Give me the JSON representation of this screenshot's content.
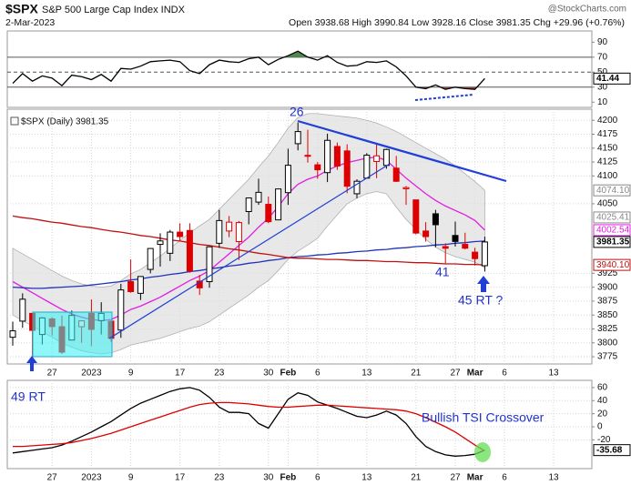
{
  "chart_data": [
    {
      "type": "line",
      "series": [
        {
          "color": "#000000",
          "values": [
            35,
            48,
            38,
            45,
            42,
            32,
            46,
            44,
            40,
            47,
            38,
            55,
            54,
            58,
            64,
            65,
            66,
            64,
            52,
            48,
            60,
            66,
            64,
            63,
            68,
            70,
            60,
            67,
            72,
            78,
            70,
            66,
            72,
            63,
            58,
            59,
            64,
            63,
            65,
            57,
            45,
            30,
            28,
            33,
            27,
            30,
            28,
            27,
            41.44,
            null,
            null,
            null,
            null,
            null,
            null,
            null,
            null,
            null,
            null
          ]
        }
      ],
      "ylim": [
        3,
        105
      ],
      "yticks": [
        10,
        30,
        50,
        70,
        90
      ],
      "levels": [
        70,
        50,
        30
      ],
      "overbought_color": "#4e8a4e",
      "oversold_color": "#9a4444",
      "last_labels": [
        {
          "value": 41.44,
          "color": "#000000"
        }
      ]
    },
    {
      "type": "candlestick",
      "title": "$SPX",
      "subtitle": "S&P 500 Large Cap Index INDX",
      "source": "@StockCharts.com",
      "date": "2-Mar-2023",
      "quote": "Open 3938.68 High 3990.84 Low 3928.16 Close 3981.35 Chg +29.96 (+0.76%)",
      "legend": "$SPX (Daily) 3981.35",
      "categories": [
        null,
        null,
        null,
        null,
        "27",
        null,
        null,
        null,
        "2023",
        null,
        null,
        null,
        "9",
        null,
        null,
        null,
        null,
        "17",
        null,
        null,
        null,
        "23",
        null,
        null,
        null,
        null,
        "30",
        null,
        "Feb",
        null,
        null,
        "6",
        null,
        null,
        null,
        null,
        "13",
        null,
        null,
        null,
        null,
        "21",
        null,
        null,
        null,
        "27",
        null,
        "Mar",
        null,
        null,
        "6",
        null,
        null,
        null,
        null,
        "13",
        null,
        null,
        null
      ],
      "open": [
        3810,
        3839,
        3853,
        3815,
        3843,
        3829,
        3805,
        3829,
        3853,
        3840,
        3839,
        3823,
        3910,
        3889,
        3932,
        3977,
        3961,
        3999,
        4002,
        3911,
        3910,
        3979,
        4001,
        3982,
        4036,
        4053,
        4049,
        4021,
        4070,
        4158,
        4137,
        4120,
        4106,
        4153,
        4145,
        4068,
        4096,
        4126,
        4119,
        4114,
        4077,
        4057,
        4001,
        4032,
        3973,
        3993,
        3977,
        3963,
        3938.68,
        null,
        null,
        null,
        null,
        null,
        null,
        null,
        null,
        null,
        null
      ],
      "high": [
        3838,
        3889,
        3853,
        3846,
        3846,
        3849,
        3858,
        3839.85,
        3878,
        3873,
        3839,
        3906,
        3950,
        3919,
        3970,
        3997,
        4003,
        4015,
        4015,
        3922,
        3973,
        4039,
        4028,
        4019,
        4061,
        4095,
        4063,
        4077,
        4149,
        4196,
        4183,
        4125,
        4176,
        4160,
        4157,
        4094,
        4141,
        4159,
        4149,
        4136,
        4082,
        4057,
        4017,
        4039,
        3979,
        4018,
        3998,
        3971,
        3990.84,
        null,
        null,
        null,
        null,
        null,
        null,
        null,
        null,
        null,
        null
      ],
      "low": [
        3795,
        3827,
        3765,
        3797,
        3813,
        3780,
        3805,
        3800,
        3794,
        3815,
        3802,
        3809,
        3890,
        3877,
        3925,
        3937,
        3947,
        3984,
        3926,
        3886,
        3899,
        3971,
        3990,
        3949,
        4013,
        4048,
        4015,
        4021,
        4048,
        4146,
        4124,
        4095,
        4089,
        4111,
        4069,
        4060,
        4096,
        4096,
        4113,
        4089,
        4048,
        3995,
        3982,
        3972,
        3943,
        3973,
        3968,
        3939,
        3928.16,
        null,
        null,
        null,
        null,
        null,
        null,
        null,
        null,
        null,
        null
      ],
      "close": [
        3821.62,
        3878.44,
        3822.39,
        3844.82,
        3829.25,
        3783.22,
        3849.28,
        3839.5,
        3824.14,
        3852.97,
        3808.1,
        3895.08,
        3892.09,
        3919.25,
        3969.61,
        3983.17,
        3999.09,
        3990.97,
        3928.86,
        3898.85,
        3972.61,
        4019.81,
        4016.95,
        4016.22,
        4060.43,
        4070.56,
        4017.77,
        4076.6,
        4119.21,
        4179.76,
        4136.48,
        4111.08,
        4164,
        4117.86,
        4081.5,
        4090.46,
        4137.29,
        4136.13,
        4147.6,
        4090.41,
        4079.09,
        3997.34,
        3991.05,
        4012.32,
        3970.04,
        3982.24,
        3970.15,
        3951.39,
        3981.35,
        null,
        null,
        null,
        null,
        null,
        null,
        null,
        null,
        null,
        null
      ],
      "up_color": "#000000",
      "down_color": "#dd0000",
      "band": {
        "color": "#dedede",
        "upper": [
          3970,
          3960,
          3950,
          3940,
          3930,
          3920,
          3912,
          3906,
          3902,
          3900,
          3902,
          3912,
          3924,
          3932,
          3944,
          3956,
          3970,
          3984,
          3998,
          4010,
          4022,
          4040,
          4058,
          4076,
          4094,
          4116,
          4136,
          4160,
          4186,
          4205,
          4212,
          4212,
          4210,
          4208,
          4206,
          4204,
          4200,
          4195,
          4188,
          4180,
          4170,
          4160,
          4150,
          4140,
          4130,
          4118,
          4104,
          4090,
          4074.1,
          null,
          null,
          null,
          null,
          null,
          null,
          null,
          null,
          null,
          null
        ],
        "lower": [
          3850,
          3840,
          3830,
          3820,
          3810,
          3800,
          3792,
          3786,
          3782,
          3780,
          3782,
          3788,
          3796,
          3800,
          3804,
          3808,
          3814,
          3820,
          3826,
          3830,
          3838,
          3850,
          3862,
          3874,
          3886,
          3900,
          3912,
          3930,
          3950,
          3965,
          3976,
          3988,
          4010,
          4030,
          4050,
          4060,
          4068,
          4072,
          4068,
          4044,
          4022,
          4004,
          3986,
          3972,
          3962,
          3955,
          3950,
          3945,
          3935,
          null,
          null,
          null,
          null,
          null,
          null,
          null,
          null,
          null,
          null
        ]
      },
      "series": [
        {
          "color": "#e020e0",
          "values": [
            3910,
            3900,
            3890,
            3880,
            3870,
            3860,
            3852,
            3846,
            3842,
            3840,
            3842,
            3850,
            3860,
            3866,
            3874,
            3882,
            3892,
            3902,
            3912,
            3920,
            3930,
            3945,
            3960,
            3975,
            3990,
            4008,
            4024,
            4045,
            4068,
            4085,
            4094,
            4100,
            4110,
            4118,
            4124,
            4128,
            4132,
            4134,
            4128,
            4112,
            4096,
            4082,
            4068,
            4056,
            4046,
            4038,
            4030,
            4020,
            4002.54,
            null,
            null,
            null,
            null,
            null,
            null,
            null,
            null,
            null,
            null
          ]
        },
        {
          "color": "#2233bb",
          "values": [
            3900,
            3899,
            3898,
            3898,
            3899,
            3900,
            3901,
            3902,
            3904,
            3906,
            3908,
            3910,
            3913,
            3915,
            3918,
            3920,
            3923,
            3925,
            3928,
            3930,
            3933,
            3935,
            3938,
            3940,
            3943,
            3945,
            3948,
            3950,
            3953,
            3955,
            3956,
            3958,
            3959,
            3961,
            3962,
            3964,
            3965,
            3967,
            3968,
            3970,
            3971,
            3973,
            3974,
            3976,
            3977,
            3979,
            3980,
            3982,
            3983,
            null,
            null,
            null,
            null,
            null,
            null,
            null,
            null,
            null,
            null
          ]
        },
        {
          "color": "#c01010",
          "values": [
            4028,
            4025,
            4023,
            4020,
            4017,
            4015,
            4012,
            4009,
            4007,
            4004,
            4001,
            3999,
            3996,
            3993,
            3991,
            3988,
            3985,
            3983,
            3980,
            3977,
            3975,
            3972,
            3969,
            3967,
            3964,
            3961,
            3959,
            3956,
            3953,
            3952,
            3952,
            3951,
            3950,
            3950,
            3949,
            3948,
            3948,
            3947,
            3946,
            3946,
            3945,
            3944,
            3944,
            3943,
            3942,
            3942,
            3941,
            3941,
            3940.1,
            null,
            null,
            null,
            null,
            null,
            null,
            null,
            null,
            null,
            null
          ]
        }
      ],
      "ylim": [
        3762,
        4220
      ],
      "yticks": [
        3775,
        3800,
        3825,
        3850,
        3875,
        3900,
        3925,
        4050,
        4100,
        4125,
        4150,
        4175,
        4200
      ],
      "grid": true,
      "last_labels": [
        {
          "value": 4074.1,
          "label": "4074.10",
          "color": "#888888"
        },
        {
          "value": 4025.41,
          "color": "#888888"
        },
        {
          "value": 4002.54,
          "color": "#e020e0"
        },
        {
          "value": 3981.35,
          "color": "#000000"
        },
        {
          "value": 3940.1,
          "label": "3940.10",
          "color": "#c01010"
        }
      ],
      "annotations": [
        {
          "text": "26",
          "color": "#2233cc"
        },
        {
          "text": "41",
          "color": "#2233cc"
        },
        {
          "text": "45 RT ?",
          "color": "#2233cc"
        }
      ]
    },
    {
      "type": "line",
      "categories": [
        null,
        null,
        null,
        null,
        "27",
        null,
        null,
        null,
        "2023",
        null,
        null,
        null,
        "9",
        null,
        null,
        null,
        null,
        "17",
        null,
        null,
        null,
        "23",
        null,
        null,
        null,
        null,
        "30",
        null,
        "Feb",
        null,
        null,
        "6",
        null,
        null,
        null,
        null,
        "13",
        null,
        null,
        null,
        null,
        "21",
        null,
        null,
        null,
        "27",
        null,
        "Mar",
        null,
        null,
        "6",
        null,
        null,
        null,
        null,
        "13",
        null,
        null,
        null
      ],
      "series": [
        {
          "color": "#000000",
          "values": [
            -40,
            -38,
            -36,
            -34,
            -32,
            -28,
            -22,
            -15,
            -8,
            0,
            8,
            18,
            28,
            36,
            42,
            48,
            54,
            58,
            60,
            56,
            45,
            30,
            22,
            22,
            20,
            5,
            -2,
            20,
            42,
            52,
            48,
            38,
            33,
            28,
            22,
            16,
            14,
            18,
            24,
            18,
            5,
            -15,
            -30,
            -38,
            -43,
            -45,
            -44,
            -42,
            -35.68,
            null,
            null,
            null,
            null,
            null,
            null,
            null,
            null,
            null,
            null
          ]
        },
        {
          "color": "#dd0000",
          "values": [
            -30,
            -30,
            -29,
            -28,
            -27,
            -26,
            -24,
            -21,
            -18,
            -14,
            -10,
            -5,
            0,
            5,
            10,
            15,
            20,
            25,
            30,
            34,
            36,
            37,
            37,
            36,
            35,
            33,
            31,
            30,
            30,
            31,
            32,
            33,
            33,
            32,
            31,
            30,
            29,
            28,
            27,
            26,
            24,
            20,
            14,
            7,
            0,
            -8,
            -18,
            -28,
            -37,
            null,
            null,
            null,
            null,
            null,
            null,
            null,
            null,
            null,
            null
          ]
        }
      ],
      "ylim": [
        -64,
        71
      ],
      "yticks": [
        -20,
        0,
        20,
        40,
        60
      ],
      "grid": true,
      "last_labels": [
        {
          "value": -35.68,
          "color": "#000000"
        }
      ],
      "annotations": [
        {
          "text": "49 RT",
          "color": "#2233cc"
        },
        {
          "text": "Bullish TSI Crossover",
          "color": "#2233cc"
        }
      ]
    }
  ]
}
